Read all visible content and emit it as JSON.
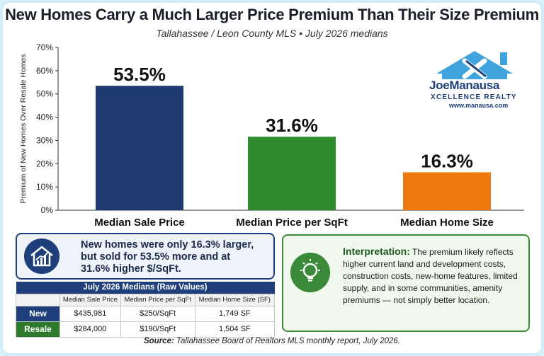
{
  "title": "New Homes Carry a Much Larger Price Premium Than Their Size Premium",
  "subtitle": "Tallahassee / Leon County MLS • July 2026 medians",
  "chart_data": {
    "type": "bar",
    "categories": [
      "Median Sale Price",
      "Median Price per SqFt",
      "Median Home Size"
    ],
    "values": [
      53.5,
      31.6,
      16.3
    ],
    "value_labels": [
      "53.5%",
      "31.6%",
      "16.3%"
    ],
    "ylabel": "Premium of New Homes Over Resale Homes",
    "ylim": [
      0,
      70
    ],
    "yticks": [
      "0%",
      "10%",
      "20%",
      "30%",
      "40%",
      "50%",
      "60%",
      "70%"
    ],
    "colors": [
      "#1e3a6e",
      "#2e8b2e",
      "#f07a10"
    ],
    "grid": false,
    "legend": "none"
  },
  "logo": {
    "name": "JoeManausa",
    "tagline": "XCELLENCE REALTY",
    "url": "www.manausa.com"
  },
  "callout": {
    "line1": "New homes were only 16.3% larger,",
    "line2": "but sold for 53.5% more and at",
    "line3": "31.6% higher $/SqFt.",
    "icon": "house-chart-icon"
  },
  "table": {
    "caption": "July 2026 Medians (Raw Values)",
    "columns": [
      "",
      "Median Sale Price",
      "Median Price per SqFt",
      "Median Home Size (SF)"
    ],
    "rows": [
      {
        "label": "New",
        "values": [
          "$435,981",
          "$250/SqFt",
          "1,749 SF"
        ]
      },
      {
        "label": "Resale",
        "values": [
          "$284,000",
          "$190/SqFt",
          "1,504 SF"
        ]
      }
    ]
  },
  "interpretation": {
    "heading": "Interpretation:",
    "text": "The premium likely reflects higher current land and development costs, construction costs, new-home features, limited supply, and in some communities, amenity premiums — not simply better location.",
    "icon": "lightbulb-icon"
  },
  "source": {
    "label": "Source:",
    "text": "Tallahassee Board of Realtors MLS monthly report, July 2026."
  }
}
